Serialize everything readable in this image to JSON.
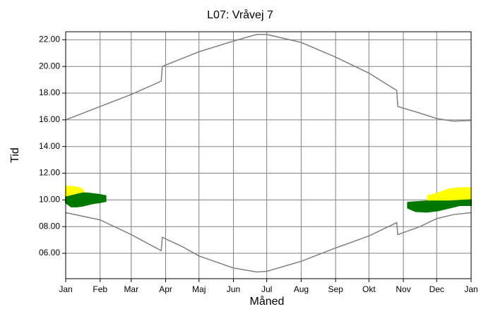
{
  "chart_data": {
    "type": "line",
    "title": "L07: Vråvej 7",
    "x_label": "Måned",
    "y_label": "Tid",
    "xlim": [
      0,
      365
    ],
    "xticks": [
      {
        "value": 0,
        "label": "Jan"
      },
      {
        "value": 31,
        "label": "Feb"
      },
      {
        "value": 59,
        "label": "Mar"
      },
      {
        "value": 90,
        "label": "Apr"
      },
      {
        "value": 120,
        "label": "Maj"
      },
      {
        "value": 151,
        "label": "Jun"
      },
      {
        "value": 181,
        "label": "Jul"
      },
      {
        "value": 212,
        "label": "Aug"
      },
      {
        "value": 243,
        "label": "Sep"
      },
      {
        "value": 273,
        "label": "Okt"
      },
      {
        "value": 304,
        "label": "Nov"
      },
      {
        "value": 334,
        "label": "Dec"
      },
      {
        "value": 365,
        "label": "Jan"
      }
    ],
    "ylim": [
      4.1,
      22.6
    ],
    "yticks": [
      {
        "value": 6,
        "label": "06.00"
      },
      {
        "value": 8,
        "label": "08.00"
      },
      {
        "value": 10,
        "label": "10.00"
      },
      {
        "value": 12,
        "label": "12.00"
      },
      {
        "value": 14,
        "label": "14.00"
      },
      {
        "value": 16,
        "label": "16.00"
      },
      {
        "value": 18,
        "label": "18.00"
      },
      {
        "value": 20,
        "label": "20.00"
      },
      {
        "value": 22,
        "label": "22.00"
      }
    ],
    "grid": true,
    "x": [
      0,
      31,
      59,
      86,
      87,
      105,
      120,
      151,
      172,
      181,
      212,
      243,
      273,
      298,
      299,
      319,
      334,
      349,
      365
    ],
    "series": [
      {
        "color": "#808080",
        "values": [
          16.0,
          17.0,
          17.9,
          18.9,
          20.0,
          20.6,
          21.1,
          21.9,
          22.4,
          22.4,
          21.8,
          20.7,
          19.5,
          18.2,
          17.0,
          16.5,
          16.1,
          15.9,
          15.95
        ]
      },
      {
        "color": "#808080",
        "values": [
          9.05,
          8.5,
          7.4,
          6.2,
          7.2,
          6.5,
          5.8,
          4.9,
          4.6,
          4.65,
          5.4,
          6.4,
          7.3,
          8.3,
          7.4,
          8.0,
          8.6,
          8.9,
          9.05
        ]
      }
    ],
    "bands": [
      {
        "color": "#ffff00",
        "x": [
          0,
          5,
          10,
          15,
          18
        ],
        "low": [
          9.9,
          9.9,
          9.9,
          10.0,
          10.1
        ],
        "high": [
          11.0,
          11.0,
          10.95,
          10.8,
          10.4
        ]
      },
      {
        "color": "#007800",
        "x": [
          0,
          5,
          10,
          15,
          20,
          25,
          30,
          36
        ],
        "low": [
          9.8,
          9.5,
          9.5,
          9.55,
          9.65,
          9.75,
          9.8,
          9.9
        ],
        "high": [
          10.2,
          10.3,
          10.4,
          10.5,
          10.5,
          10.45,
          10.4,
          10.3
        ]
      },
      {
        "color": "#ffff00",
        "x": [
          326,
          335,
          345,
          355,
          365
        ],
        "low": [
          9.8,
          9.8,
          9.8,
          9.8,
          9.9
        ],
        "high": [
          10.3,
          10.5,
          10.8,
          10.9,
          10.9
        ]
      },
      {
        "color": "#007800",
        "x": [
          308,
          315,
          325,
          335,
          345,
          355,
          365
        ],
        "low": [
          9.4,
          9.15,
          9.1,
          9.2,
          9.4,
          9.6,
          9.6
        ],
        "high": [
          9.8,
          9.85,
          9.9,
          9.9,
          9.9,
          9.95,
          10.0
        ]
      }
    ]
  }
}
